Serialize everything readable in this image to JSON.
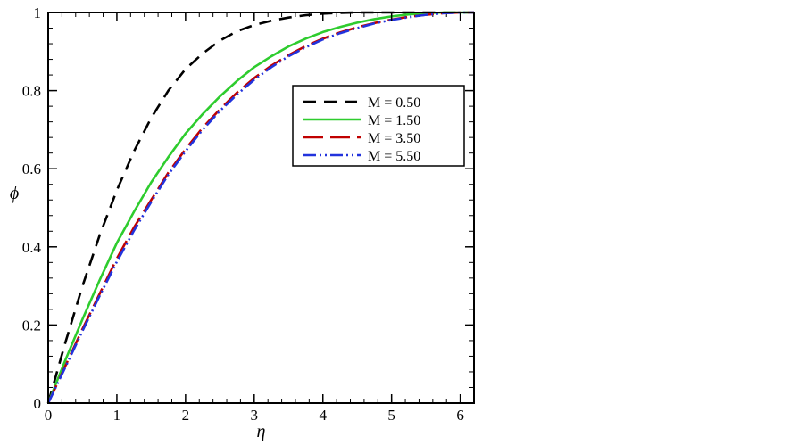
{
  "chart_data": {
    "type": "line",
    "xlabel": "η",
    "ylabel": "ϕ",
    "xlim": [
      0,
      6.2
    ],
    "ylim": [
      0,
      1
    ],
    "xticks": [
      "0",
      "1",
      "2",
      "3",
      "4",
      "5",
      "6"
    ],
    "yticks": [
      "0",
      "0.2",
      "0.4",
      "0.6",
      "0.8",
      "1"
    ],
    "grid": false,
    "legend_position": "top-right",
    "series": [
      {
        "name": "M = 0.50",
        "color": "#000000",
        "dash": "dashed",
        "x": [
          0,
          0.25,
          0.5,
          0.75,
          1.0,
          1.25,
          1.5,
          1.75,
          2.0,
          2.25,
          2.5,
          2.75,
          3.0,
          3.25,
          3.5,
          3.75,
          4.0,
          4.25,
          4.5,
          5.0,
          5.5,
          6.0,
          6.2
        ],
        "y": [
          0,
          0.155,
          0.3,
          0.43,
          0.545,
          0.645,
          0.73,
          0.8,
          0.855,
          0.895,
          0.928,
          0.952,
          0.968,
          0.979,
          0.987,
          0.993,
          0.997,
          0.999,
          1.0,
          1.0,
          1.0,
          1.0,
          1.0
        ]
      },
      {
        "name": "M = 1.50",
        "color": "#2ecc2e",
        "dash": "solid",
        "x": [
          0,
          0.25,
          0.5,
          0.75,
          1.0,
          1.25,
          1.5,
          1.75,
          2.0,
          2.25,
          2.5,
          2.75,
          3.0,
          3.25,
          3.5,
          3.75,
          4.0,
          4.25,
          4.5,
          4.75,
          5.0,
          5.25,
          5.5,
          5.75,
          6.0,
          6.2
        ],
        "y": [
          0,
          0.11,
          0.215,
          0.315,
          0.41,
          0.49,
          0.565,
          0.63,
          0.69,
          0.74,
          0.785,
          0.825,
          0.86,
          0.888,
          0.913,
          0.933,
          0.95,
          0.963,
          0.974,
          0.983,
          0.99,
          0.995,
          0.998,
          1.0,
          1.0,
          1.0
        ]
      },
      {
        "name": "M = 3.50",
        "color": "#c00000",
        "dash": "longdash",
        "x": [
          0,
          0.25,
          0.5,
          0.75,
          1.0,
          1.25,
          1.5,
          1.75,
          2.0,
          2.25,
          2.5,
          2.75,
          3.0,
          3.25,
          3.5,
          3.75,
          4.0,
          4.25,
          4.5,
          4.75,
          5.0,
          5.25,
          5.5,
          5.75,
          6.0,
          6.2
        ],
        "y": [
          0,
          0.095,
          0.19,
          0.28,
          0.37,
          0.45,
          0.52,
          0.59,
          0.65,
          0.705,
          0.752,
          0.795,
          0.832,
          0.864,
          0.891,
          0.914,
          0.933,
          0.949,
          0.962,
          0.973,
          0.982,
          0.989,
          0.994,
          0.998,
          1.0,
          1.0
        ]
      },
      {
        "name": "M = 5.50",
        "color": "#2233dd",
        "dash": "dashdotdot",
        "x": [
          0,
          0.25,
          0.5,
          0.75,
          1.0,
          1.25,
          1.5,
          1.75,
          2.0,
          2.25,
          2.5,
          2.75,
          3.0,
          3.25,
          3.5,
          3.75,
          4.0,
          4.25,
          4.5,
          4.75,
          5.0,
          5.25,
          5.5,
          5.75,
          6.0,
          6.2
        ],
        "y": [
          0,
          0.092,
          0.185,
          0.275,
          0.362,
          0.442,
          0.515,
          0.585,
          0.645,
          0.7,
          0.748,
          0.79,
          0.828,
          0.86,
          0.888,
          0.911,
          0.931,
          0.947,
          0.96,
          0.972,
          0.981,
          0.988,
          0.994,
          0.998,
          1.0,
          1.0
        ]
      }
    ]
  }
}
